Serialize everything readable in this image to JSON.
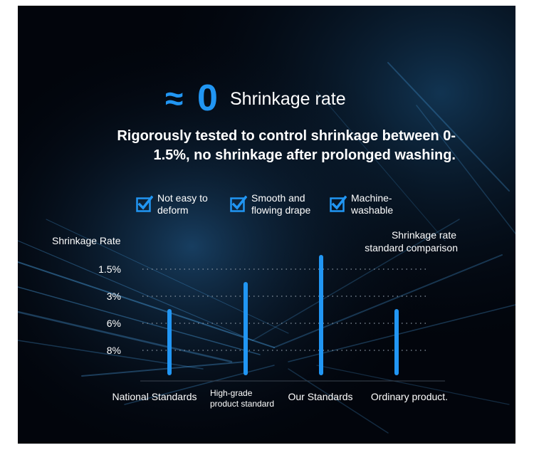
{
  "header": {
    "approx_symbol": "≈",
    "zero": "0",
    "title": "Shrinkage rate",
    "subtitle_line1": "Rigorously tested to control shrinkage between 0-",
    "subtitle_line2": "1.5%, no shrinkage after prolonged washing."
  },
  "features": [
    {
      "line1": "Not easy to",
      "line2": "deform"
    },
    {
      "line1": "Smooth and",
      "line2": "flowing drape"
    },
    {
      "line1": "Machine-",
      "line2": "washable"
    }
  ],
  "colors": {
    "accent": "#2196f3",
    "background": "#02050c",
    "text": "#ffffff"
  },
  "chart_data": {
    "type": "bar",
    "title": "",
    "legend_line1": "Shrinkage rate",
    "legend_line2": "standard comparison",
    "ylabel": "Shrinkage Rate",
    "yticks": [
      "1.5%",
      "3%",
      "6%",
      "8%"
    ],
    "categories": [
      {
        "line1": "National Standards",
        "line2": ""
      },
      {
        "line1": "High-grade",
        "line2": "product standard"
      },
      {
        "line1": "Our Standards",
        "line2": ""
      },
      {
        "line1": "Ordinary product.",
        "line2": ""
      }
    ],
    "values": [
      "6%",
      "3%",
      "1.5%",
      "6%"
    ],
    "grid": true
  }
}
